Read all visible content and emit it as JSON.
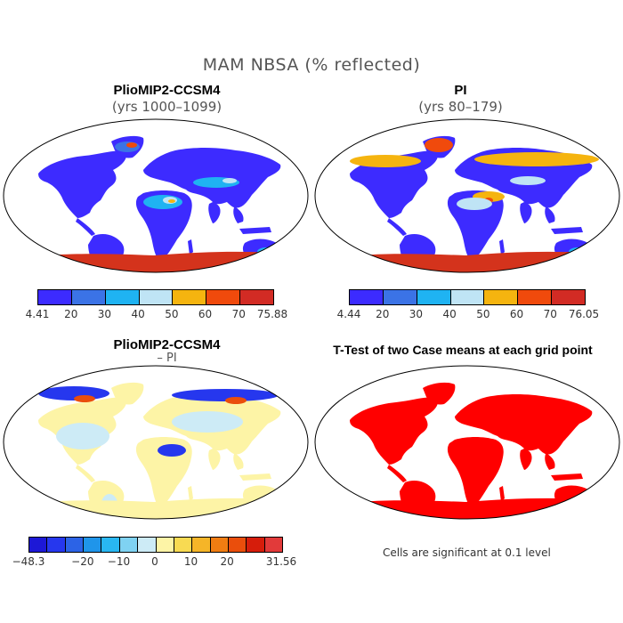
{
  "figure_title": "MAM NBSA (% reflected)",
  "panels": [
    {
      "title": "PlioMIP2-CCSM4",
      "subtitle": "(yrs 1000–1099)"
    },
    {
      "title": "PI",
      "subtitle": "(yrs 80–179)"
    },
    {
      "title": "PlioMIP2-CCSM4",
      "subtitle": "– PI"
    },
    {
      "title": "T-Test of two Case means at each grid point",
      "subtitle": ""
    }
  ],
  "colorbars": {
    "abs_colors": [
      "#3c2bff",
      "#3b73e6",
      "#1fb3f2",
      "#bfe4f5",
      "#f5b40f",
      "#f04a0c",
      "#d22b24"
    ],
    "diff_colors": [
      "#1d18d6",
      "#2637ee",
      "#2c63e6",
      "#1f95ea",
      "#29b7f2",
      "#7fd2f2",
      "#cdebf6",
      "#fdf4a6",
      "#f8da52",
      "#f5b528",
      "#f07d12",
      "#ea4e0c",
      "#d61d0b",
      "#e23a3a"
    ],
    "left_ticks": [
      "4.41",
      "20",
      "30",
      "40",
      "50",
      "60",
      "70",
      "75.88"
    ],
    "right_ticks": [
      "4.44",
      "20",
      "30",
      "40",
      "50",
      "60",
      "70",
      "76.05"
    ],
    "diff_ticks": [
      "−48.3",
      "−20",
      "−10",
      "0",
      "10",
      "20",
      "31.56"
    ]
  },
  "significance_note": "Cells are significant at 0.1 level",
  "colors": {
    "land_base": "#3d2bff",
    "ice_sheet": "#d4331c",
    "desert": "#1fb3f2",
    "diff_land": "#fdf4a6",
    "ttest_land": "#ff0000"
  }
}
